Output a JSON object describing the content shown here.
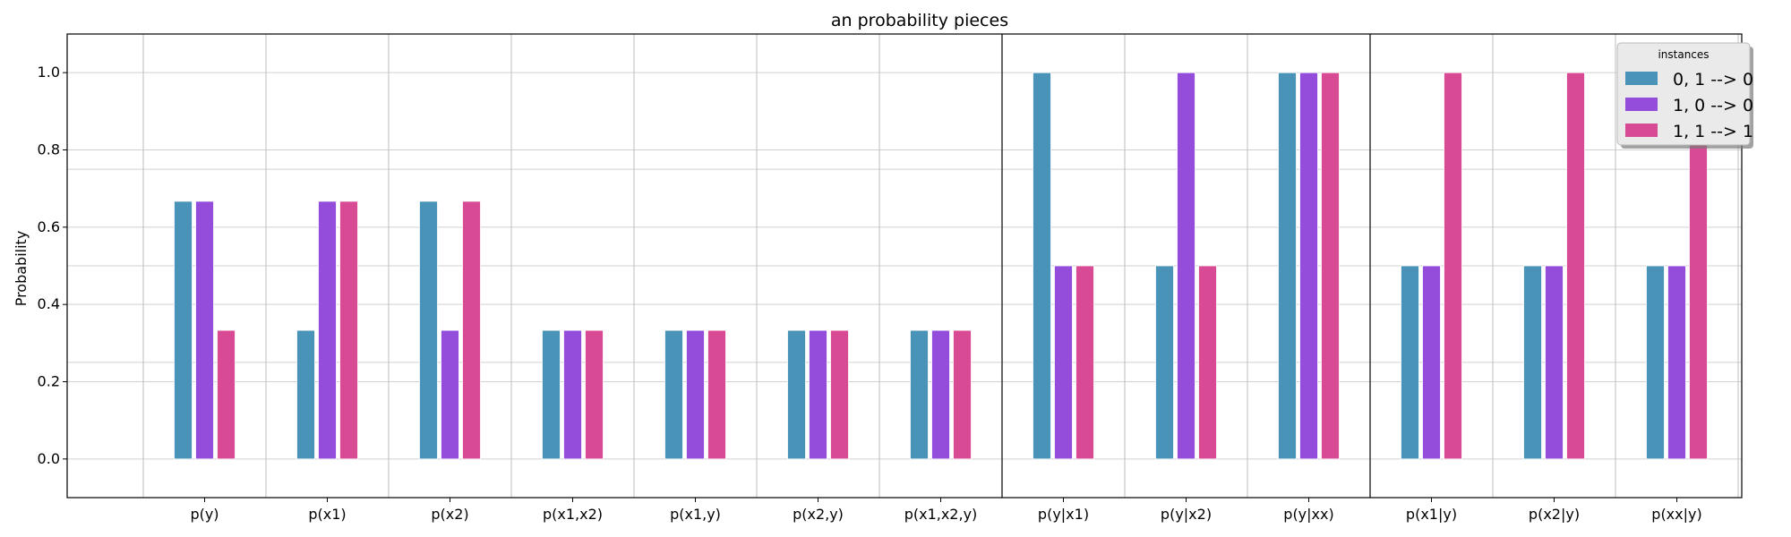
{
  "chart_data": {
    "type": "bar",
    "title": "an probability pieces",
    "xlabel": "",
    "ylabel": "Probability",
    "ylim": [
      -0.1,
      1.1
    ],
    "y_ticks": [
      "0.0",
      "0.2",
      "0.4",
      "0.6",
      "0.8",
      "1.0"
    ],
    "y_tick_values": [
      0.0,
      0.2,
      0.4,
      0.6,
      0.8,
      1.0
    ],
    "extra_gridlines": [
      0.25,
      0.5,
      0.75
    ],
    "grid": true,
    "categories": [
      "p(y)",
      "p(x1)",
      "p(x2)",
      "p(x1,x2)",
      "p(x1,y)",
      "p(x2,y)",
      "p(x1,x2,y)",
      "p(y|x1)",
      "p(y|x2)",
      "p(y|xx)",
      "p(x1|y)",
      "p(x2|y)",
      "p(xx|y)"
    ],
    "group_dividers_after": [
      7,
      10
    ],
    "series": [
      {
        "name": "0, 1 --> 0",
        "color": "#4a93b8",
        "values": [
          0.667,
          0.333,
          0.667,
          0.333,
          0.333,
          0.333,
          0.333,
          1.0,
          0.5,
          1.0,
          0.5,
          0.5,
          0.5
        ]
      },
      {
        "name": "1, 0 --> 0",
        "color": "#944cdb",
        "values": [
          0.667,
          0.667,
          0.333,
          0.333,
          0.333,
          0.333,
          0.333,
          0.5,
          1.0,
          1.0,
          0.5,
          0.5,
          0.5
        ]
      },
      {
        "name": "1, 1 --> 1",
        "color": "#d94a94",
        "values": [
          0.333,
          0.667,
          0.667,
          0.333,
          0.333,
          0.333,
          0.333,
          0.5,
          0.5,
          1.0,
          1.0,
          1.0,
          1.0
        ]
      }
    ],
    "legend": {
      "title": "instances",
      "placement": "top-right"
    }
  }
}
